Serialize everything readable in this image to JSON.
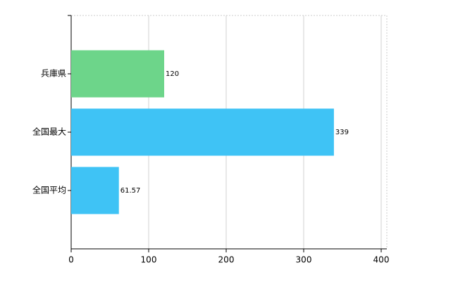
{
  "chart_data": {
    "type": "barh",
    "categories": [
      "兵庫県",
      "全国最大",
      "全国平均"
    ],
    "values": [
      120,
      339,
      61.57
    ],
    "colors": [
      "#6dd58a",
      "#3fc3f5",
      "#3fc3f5"
    ],
    "xlim": [
      0,
      400
    ],
    "xticks": [
      0,
      100,
      200,
      300,
      400
    ],
    "grid": true
  }
}
